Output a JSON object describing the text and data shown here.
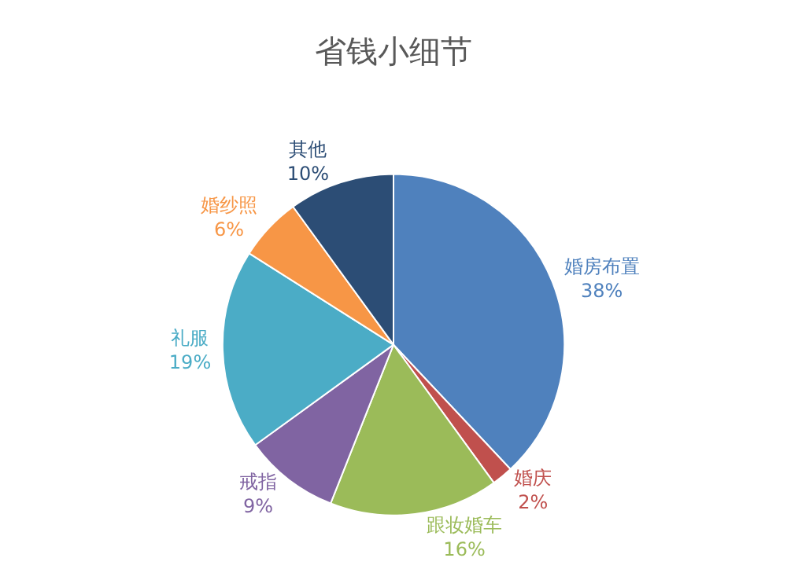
{
  "chart_data": {
    "type": "pie",
    "title": "省钱小细节",
    "categories": [
      "婚房布置",
      "婚庆",
      "跟妆婚车",
      "戒指",
      "礼服",
      "婚纱照",
      "其他"
    ],
    "values": [
      38,
      2,
      16,
      9,
      19,
      6,
      10
    ],
    "value_labels": [
      "38%",
      "2%",
      "16%",
      "9%",
      "19%",
      "6%",
      "10%"
    ],
    "colors": [
      "#4f81bd",
      "#c0504d",
      "#9bbb59",
      "#8064a2",
      "#4bacc6",
      "#f79646",
      "#2c4d75"
    ],
    "legend": false
  }
}
